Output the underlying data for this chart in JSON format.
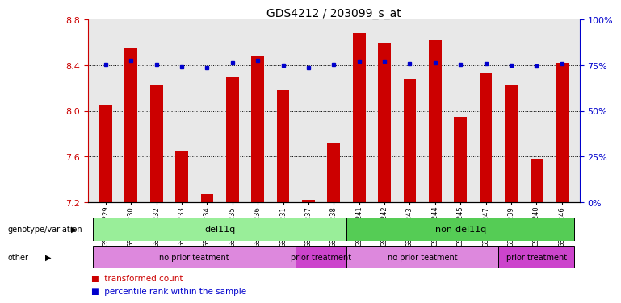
{
  "title": "GDS4212 / 203099_s_at",
  "samples": [
    "GSM652229",
    "GSM652230",
    "GSM652232",
    "GSM652233",
    "GSM652234",
    "GSM652235",
    "GSM652236",
    "GSM652231",
    "GSM652237",
    "GSM652238",
    "GSM652241",
    "GSM652242",
    "GSM652243",
    "GSM652244",
    "GSM652245",
    "GSM652247",
    "GSM652239",
    "GSM652240",
    "GSM652246"
  ],
  "red_values": [
    8.05,
    8.55,
    8.22,
    7.65,
    7.27,
    8.3,
    8.48,
    8.18,
    7.22,
    7.72,
    8.68,
    8.6,
    8.28,
    8.62,
    7.95,
    8.33,
    8.22,
    7.58,
    8.42
  ],
  "blue_values": [
    75.5,
    77.5,
    75.5,
    74.2,
    73.5,
    76.3,
    77.8,
    74.8,
    73.8,
    75.5,
    77.0,
    77.3,
    75.8,
    76.3,
    75.3,
    75.8,
    75.0,
    74.5,
    75.8
  ],
  "ylim_left": [
    7.2,
    8.8
  ],
  "ylim_right": [
    0,
    100
  ],
  "yticks_left": [
    7.2,
    7.6,
    8.0,
    8.4,
    8.8
  ],
  "yticks_right": [
    0,
    25,
    50,
    75,
    100
  ],
  "grid_lines": [
    7.6,
    8.0,
    8.4
  ],
  "bar_color": "#cc0000",
  "dot_color": "#0000cc",
  "del11q_color": "#99ee99",
  "non_del11q_color": "#55cc55",
  "no_prior_color": "#dd88dd",
  "prior_color": "#cc44cc",
  "legend_red": "transformed count",
  "legend_blue": "percentile rank within the sample",
  "label_genotype": "genotype/variation",
  "label_other": "other",
  "right_axis_color": "#0000cc",
  "left_axis_color": "#cc0000",
  "plot_bg": "#e8e8e8",
  "n_del11q": 10,
  "n_nondel11q": 9,
  "n_no_prior_del": 8,
  "n_prior_del": 2,
  "n_no_prior_nondel": 6,
  "n_prior_nondel": 3
}
